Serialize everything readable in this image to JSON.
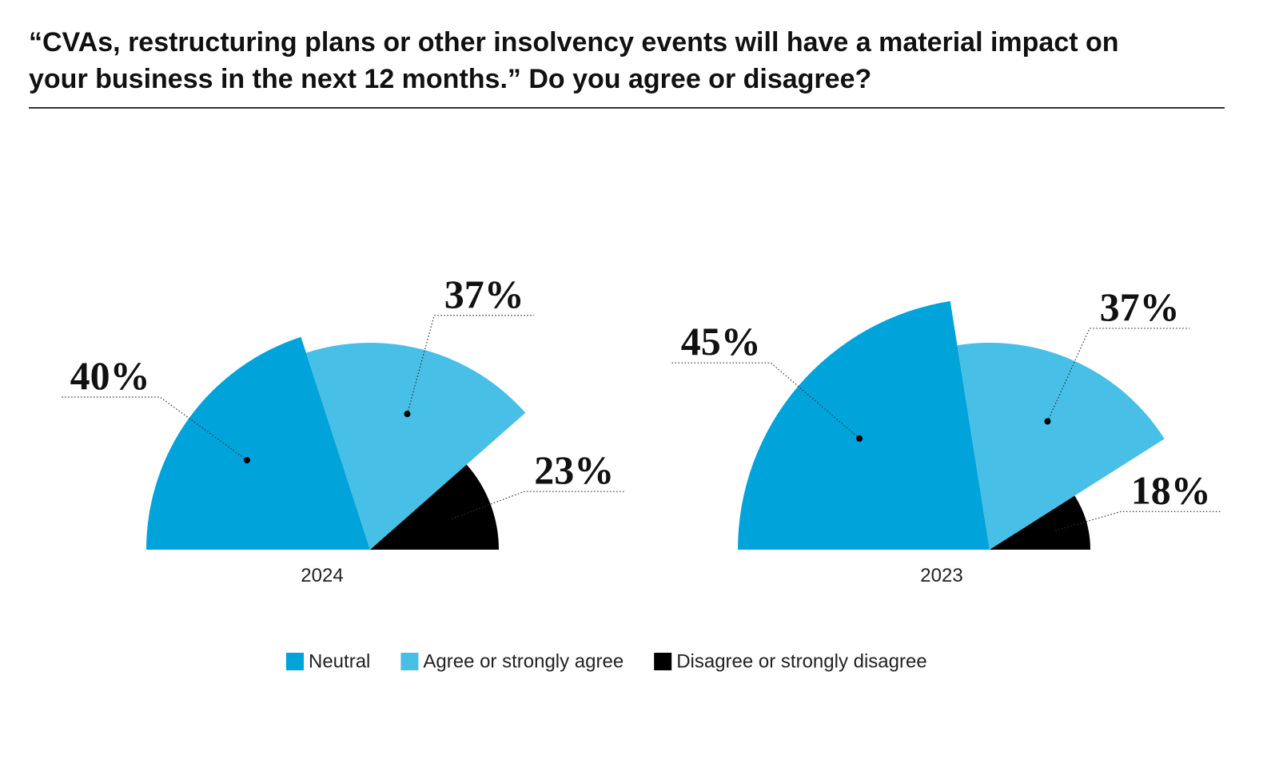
{
  "title": "“CVAs, restructuring plans or other insolvency events will have a material impact on your business in the next 12 months.” Do you agree or disagree?",
  "chart_data": [
    {
      "type": "pie",
      "title": "2024",
      "categories": [
        "Neutral",
        "Agree or strongly agree",
        "Disagree or strongly disagree"
      ],
      "values": [
        40,
        37,
        23
      ],
      "value_labels": [
        "40%",
        "37%",
        "23%"
      ],
      "colors": [
        "#00a3da",
        "#47bfe6",
        "#000000"
      ]
    },
    {
      "type": "pie",
      "title": "2023",
      "categories": [
        "Neutral",
        "Agree or strongly agree",
        "Disagree or strongly disagree"
      ],
      "values": [
        45,
        37,
        18
      ],
      "value_labels": [
        "45%",
        "37%",
        "18%"
      ],
      "colors": [
        "#00a3da",
        "#47bfe6",
        "#000000"
      ]
    }
  ]
}
